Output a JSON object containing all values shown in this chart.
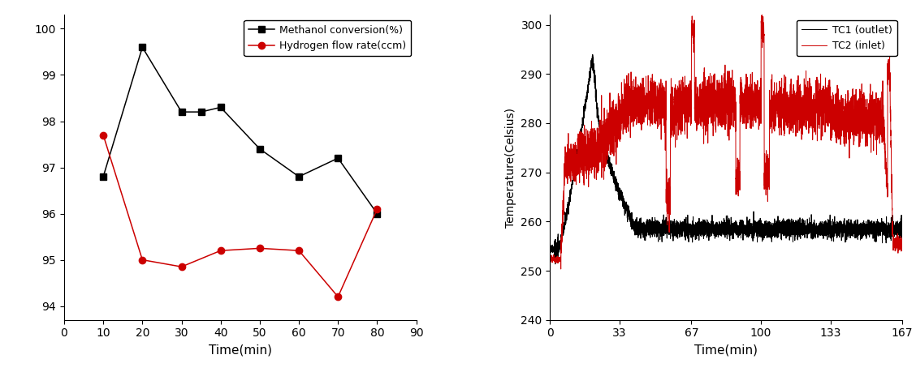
{
  "left": {
    "methanol_x": [
      10,
      20,
      30,
      35,
      40,
      50,
      60,
      70,
      80
    ],
    "methanol_y": [
      96.8,
      99.6,
      98.2,
      98.2,
      98.3,
      97.4,
      96.8,
      97.2,
      96.0
    ],
    "hydrogen_x": [
      10,
      20,
      30,
      40,
      50,
      60,
      70,
      80
    ],
    "hydrogen_y": [
      97.7,
      95.0,
      94.85,
      95.2,
      95.25,
      95.2,
      94.2,
      96.1
    ],
    "xlabel": "Time(min)",
    "xlim": [
      0,
      90
    ],
    "ylim": [
      93.7,
      100.3
    ],
    "xticks": [
      0,
      10,
      20,
      30,
      40,
      50,
      60,
      70,
      80,
      90
    ],
    "yticks": [
      94,
      95,
      96,
      97,
      98,
      99,
      100
    ],
    "legend1": "Methanol conversion(%)",
    "legend2": "Hydrogen flow rate(ccm)",
    "line1_color": "#000000",
    "line2_color": "#cc0000",
    "marker1": "s",
    "marker2": "o"
  },
  "right": {
    "xlabel": "Time(min)",
    "ylabel": "Temperature(Celsius)",
    "xlim": [
      0,
      167
    ],
    "ylim": [
      240,
      302
    ],
    "xticks": [
      0,
      33,
      67,
      100,
      133,
      167
    ],
    "yticks": [
      240,
      250,
      260,
      270,
      280,
      290,
      300
    ],
    "legend1": "TC1 (outlet)",
    "legend2": "TC2 (inlet)",
    "line1_color": "#000000",
    "line2_color": "#cc0000",
    "noise_seed": 42
  }
}
